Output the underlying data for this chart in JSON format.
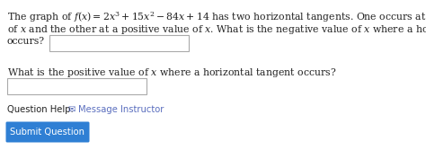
{
  "background_color": "#ffffff",
  "text_color": "#222222",
  "link_color": "#5b6fbf",
  "submit_button_color": "#2f7fd4",
  "submit_button_text_color": "#ffffff",
  "input_box_color": "#ffffff",
  "input_border_color": "#aaaaaa",
  "line1": "The graph of $f(x) = 2x^3 + 15x^2 - 84x + 14$ has two horizontal tangents. One occurs at a negative value",
  "line2": "of $x$ and the other at a positive value of $x$. What is the negative value of $x$ where a horizontal tangent",
  "line3": "occurs?",
  "question2": "What is the positive value of $x$ where a horizontal tangent occurs?",
  "question_help_label": "Question Help:  ✉ ",
  "message_instructor": "Message Instructor",
  "submit_button_text": "Submit Question",
  "font_size": 7.8,
  "small_font_size": 7.2
}
